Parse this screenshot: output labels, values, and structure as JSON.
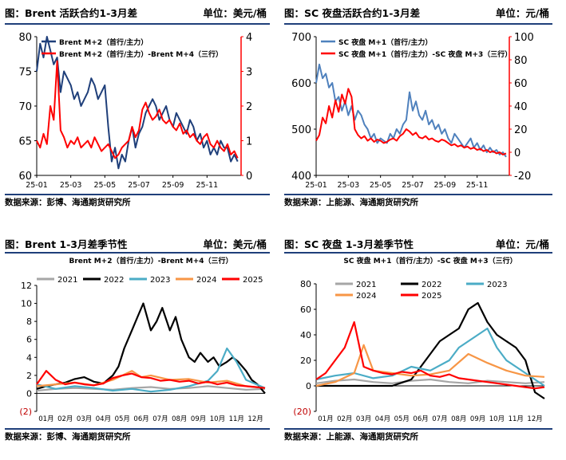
{
  "panels": {
    "p1": {
      "title": "图：Brent 活跃合约1-3月差",
      "unit": "单位：美元/桶",
      "source": "数据来源：彭博、海通期货研究所"
    },
    "p2": {
      "title": "图：SC 夜盘活跃合约1-3月差",
      "unit": "单位：元/桶",
      "source": "数据来源：上能源、海通期货研究所"
    },
    "p3": {
      "title": "图：Brent 1-3月差季节性",
      "unit": "单位：美元/桶",
      "source": "数据来源：彭博、海通期货研究所"
    },
    "p4": {
      "title": "图：SC 夜盘 1-3月差季节性",
      "unit": "单位：元/桶",
      "source": "数据来源：上能源、海通期货研究所"
    }
  },
  "colors": {
    "navy": "#1f3f7a",
    "red": "#ff0000",
    "blue": "#4f81bd",
    "y2021": "#a6a6a6",
    "y2022": "#000000",
    "y2023": "#4bacc6",
    "y2024": "#f79646",
    "y2025": "#ff0000"
  },
  "chart_data": [
    {
      "id": "c1",
      "type": "line",
      "title": "",
      "x_ticks": [
        "25-01",
        "25-03",
        "25-05",
        "25-07",
        "25-09",
        "25-11"
      ],
      "x_range": [
        0,
        12
      ],
      "left_axis": {
        "ticks": [
          "60",
          "65",
          "70",
          "75",
          "80"
        ],
        "range": [
          60,
          80
        ]
      },
      "right_axis": {
        "ticks": [
          "0",
          "1",
          "2",
          "3",
          "4"
        ],
        "range": [
          0,
          4
        ]
      },
      "series": [
        {
          "name": "Brent M+2（首行/主力）",
          "axis": "left",
          "color": "#1f3f7a",
          "x": [
            0,
            0.2,
            0.4,
            0.6,
            0.8,
            1,
            1.2,
            1.4,
            1.6,
            1.8,
            2,
            2.2,
            2.4,
            2.6,
            2.8,
            3,
            3.2,
            3.4,
            3.6,
            3.8,
            4,
            4.2,
            4.4,
            4.6,
            4.8,
            5,
            5.2,
            5.4,
            5.6,
            5.8,
            6,
            6.2,
            6.4,
            6.6,
            6.8,
            7,
            7.2,
            7.4,
            7.6,
            7.8,
            8,
            8.2,
            8.4,
            8.6,
            8.8,
            9,
            9.2,
            9.4,
            9.6,
            9.8,
            10,
            10.2,
            10.4,
            10.6,
            10.8,
            11,
            11.2,
            11.4,
            11.6,
            11.8
          ],
          "y": [
            75,
            79,
            77,
            80,
            78,
            76,
            77,
            72,
            75,
            74,
            73,
            71,
            72,
            70,
            71,
            72,
            74,
            73,
            71,
            72,
            73,
            67,
            62,
            64,
            61,
            63,
            62,
            65,
            67,
            64,
            66,
            67,
            69,
            70,
            71,
            70,
            68,
            69,
            70,
            68,
            67,
            69,
            68,
            67,
            66,
            68,
            67,
            65,
            66,
            64,
            65,
            63,
            64,
            63,
            65,
            64,
            64,
            62,
            63,
            62
          ]
        },
        {
          "name": "Brent M+2（首行/主力）-Brent M+4（三行）",
          "axis": "right",
          "color": "#ff0000",
          "x": [
            0,
            0.2,
            0.4,
            0.6,
            0.8,
            1,
            1.2,
            1.4,
            1.6,
            1.8,
            2,
            2.2,
            2.4,
            2.6,
            2.8,
            3,
            3.2,
            3.4,
            3.6,
            3.8,
            4,
            4.2,
            4.4,
            4.6,
            4.8,
            5,
            5.2,
            5.4,
            5.6,
            5.8,
            6,
            6.2,
            6.4,
            6.6,
            6.8,
            7,
            7.2,
            7.4,
            7.6,
            7.8,
            8,
            8.2,
            8.4,
            8.6,
            8.8,
            9,
            9.2,
            9.4,
            9.6,
            9.8,
            10,
            10.2,
            10.4,
            10.6,
            10.8,
            11,
            11.2,
            11.4,
            11.6,
            11.8
          ],
          "y": [
            1,
            0.8,
            1.2,
            0.9,
            2,
            1.6,
            3.3,
            1.3,
            1.1,
            0.8,
            1,
            0.9,
            1.1,
            0.8,
            0.9,
            1,
            0.8,
            1.1,
            0.9,
            0.7,
            0.8,
            0.9,
            0.7,
            0.5,
            0.6,
            0.8,
            0.9,
            1,
            1.4,
            1.1,
            1.3,
            1.9,
            2.1,
            1.8,
            1.6,
            1.7,
            1.9,
            1.6,
            1.5,
            1.6,
            1.4,
            1.3,
            1.5,
            1.2,
            1.3,
            1.1,
            1.2,
            1,
            0.9,
            1.1,
            1.2,
            0.9,
            0.8,
            1,
            0.8,
            0.7,
            0.9,
            0.6,
            0.7,
            0.5
          ]
        }
      ]
    },
    {
      "id": "c2",
      "type": "line",
      "title": "",
      "x_ticks": [
        "25-01",
        "25-03",
        "25-05",
        "25-07",
        "25-09",
        "25-11"
      ],
      "x_range": [
        0,
        12
      ],
      "left_axis": {
        "ticks": [
          "400",
          "500",
          "600",
          "700"
        ],
        "range": [
          400,
          700
        ]
      },
      "right_axis": {
        "ticks": [
          "-20",
          "0",
          "20",
          "40",
          "60",
          "80",
          "100"
        ],
        "range": [
          -20,
          100
        ]
      },
      "series": [
        {
          "name": "SC 夜盘 M+1（首行/主力）",
          "axis": "left",
          "color": "#4f81bd",
          "x": [
            0,
            0.2,
            0.4,
            0.6,
            0.8,
            1,
            1.2,
            1.4,
            1.6,
            1.8,
            2,
            2.2,
            2.4,
            2.6,
            2.8,
            3,
            3.2,
            3.4,
            3.6,
            3.8,
            4,
            4.2,
            4.4,
            4.6,
            4.8,
            5,
            5.2,
            5.4,
            5.6,
            5.8,
            6,
            6.2,
            6.4,
            6.6,
            6.8,
            7,
            7.2,
            7.4,
            7.6,
            7.8,
            8,
            8.2,
            8.4,
            8.6,
            8.8,
            9,
            9.2,
            9.4,
            9.6,
            9.8,
            10,
            10.2,
            10.4,
            10.6,
            10.8,
            11,
            11.2,
            11.4,
            11.6,
            11.8
          ],
          "y": [
            600,
            640,
            610,
            620,
            590,
            600,
            560,
            570,
            540,
            560,
            530,
            550,
            520,
            540,
            530,
            510,
            500,
            480,
            490,
            470,
            480,
            475,
            470,
            490,
            480,
            500,
            490,
            510,
            520,
            580,
            540,
            560,
            530,
            520,
            540,
            510,
            520,
            500,
            510,
            490,
            500,
            480,
            470,
            490,
            480,
            470,
            460,
            470,
            480,
            460,
            470,
            455,
            465,
            450,
            460,
            450,
            455,
            445,
            450,
            440
          ]
        },
        {
          "name": "SC 夜盘 M+1（首行/主力）-SC 夜盘 M+3（三行）",
          "axis": "right",
          "color": "#ff0000",
          "x": [
            0,
            0.2,
            0.4,
            0.6,
            0.8,
            1,
            1.2,
            1.4,
            1.6,
            1.8,
            2,
            2.2,
            2.4,
            2.6,
            2.8,
            3,
            3.2,
            3.4,
            3.6,
            3.8,
            4,
            4.2,
            4.4,
            4.6,
            4.8,
            5,
            5.2,
            5.4,
            5.6,
            5.8,
            6,
            6.2,
            6.4,
            6.6,
            6.8,
            7,
            7.2,
            7.4,
            7.6,
            7.8,
            8,
            8.2,
            8.4,
            8.6,
            8.8,
            9,
            9.2,
            9.4,
            9.6,
            9.8,
            10,
            10.2,
            10.4,
            10.6,
            10.8,
            11,
            11.2,
            11.4,
            11.6,
            11.8
          ],
          "y": [
            10,
            15,
            30,
            25,
            40,
            30,
            45,
            35,
            50,
            42,
            55,
            48,
            20,
            15,
            12,
            14,
            10,
            12,
            9,
            11,
            10,
            8,
            9,
            11,
            12,
            10,
            14,
            16,
            20,
            18,
            15,
            17,
            13,
            12,
            14,
            11,
            12,
            10,
            9,
            11,
            10,
            8,
            6,
            7,
            5,
            6,
            4,
            5,
            3,
            4,
            2,
            3,
            1,
            2,
            0,
            1,
            -1,
            0,
            -2,
            -1
          ]
        }
      ]
    },
    {
      "id": "c3",
      "type": "line",
      "title": "Brent M+2（首行/主力）-Brent M+4（三行）",
      "x_ticks": [
        "01月",
        "02月",
        "03月",
        "04月",
        "05月",
        "06月",
        "07月",
        "08月",
        "09月",
        "10月",
        "11月",
        "12月"
      ],
      "x_range": [
        0,
        12
      ],
      "y_ticks": [
        "(2)",
        "0",
        "2",
        "4",
        "6",
        "8",
        "10",
        "12"
      ],
      "y_range": [
        -2,
        12
      ],
      "series": [
        {
          "name": "2021",
          "color": "#a6a6a6",
          "x": [
            0,
            1,
            2,
            3,
            4,
            5,
            6,
            7,
            8,
            9,
            10,
            11,
            12
          ],
          "y": [
            0.3,
            0.5,
            0.6,
            0.5,
            0.4,
            0.6,
            0.7,
            0.5,
            0.6,
            0.8,
            0.6,
            0.4,
            0.5
          ]
        },
        {
          "name": "2022",
          "color": "#000000",
          "x": [
            0,
            0.5,
            1,
            1.5,
            2,
            2.5,
            3,
            3.5,
            4,
            4.3,
            4.6,
            5,
            5.3,
            5.6,
            6,
            6.3,
            6.6,
            7,
            7.3,
            7.6,
            8,
            8.3,
            8.6,
            9,
            9.3,
            9.6,
            10,
            10.3,
            10.6,
            11,
            11.3,
            11.6,
            12
          ],
          "y": [
            0.5,
            0.8,
            1,
            1.2,
            1.6,
            1.8,
            1.3,
            1.1,
            2,
            3,
            5,
            7,
            8.5,
            10,
            7,
            8,
            9.5,
            7,
            8.5,
            6,
            4,
            3.5,
            4.5,
            3.5,
            4,
            3,
            3.5,
            4,
            3.5,
            2.5,
            1.5,
            1,
            0
          ]
        },
        {
          "name": "2023",
          "color": "#4bacc6",
          "x": [
            0,
            1,
            2,
            3,
            4,
            5,
            6,
            7,
            8,
            9,
            9.5,
            10,
            10.5,
            11,
            12
          ],
          "y": [
            1,
            0.5,
            0.8,
            0.6,
            0.3,
            0.5,
            0.2,
            0.4,
            0.8,
            1.4,
            2.5,
            5,
            3.5,
            1.5,
            0.6
          ]
        },
        {
          "name": "2024",
          "color": "#f79646",
          "x": [
            0,
            1,
            2,
            3,
            4,
            4.5,
            5,
            5.5,
            6,
            7,
            8,
            9,
            10,
            11,
            12
          ],
          "y": [
            0.8,
            1,
            1.2,
            0.9,
            1.5,
            2,
            2.5,
            1.8,
            2,
            1.5,
            1.6,
            1.2,
            1.4,
            0.8,
            0.6
          ]
        },
        {
          "name": "2025",
          "color": "#ff0000",
          "x": [
            0,
            0.5,
            1,
            1.5,
            2,
            2.5,
            3,
            3.5,
            4,
            4.5,
            5,
            5.5,
            6,
            6.5,
            7,
            7.5,
            8,
            8.5,
            9,
            9.5,
            10,
            10.5,
            11,
            11.5,
            12
          ],
          "y": [
            1,
            2.5,
            1.5,
            1,
            1.2,
            1,
            0.9,
            1.1,
            1.7,
            2,
            2.2,
            1.8,
            1.7,
            1.4,
            1.5,
            1.3,
            1.4,
            1.1,
            1.3,
            1,
            1.2,
            0.9,
            0.8,
            0.7,
            0.6
          ]
        }
      ]
    },
    {
      "id": "c4",
      "type": "line",
      "title": "SC 夜盘 M+1（首行/主力）-SC 夜盘 M+3（三行）",
      "x_ticks": [
        "01月",
        "02月",
        "03月",
        "04月",
        "05月",
        "06月",
        "07月",
        "08月",
        "09月",
        "10月",
        "11月",
        "12月"
      ],
      "x_range": [
        0,
        12
      ],
      "y_ticks": [
        "(20)",
        "0",
        "20",
        "40",
        "60",
        "80"
      ],
      "y_range": [
        -20,
        80
      ],
      "series": [
        {
          "name": "2021",
          "color": "#a6a6a6",
          "x": [
            0,
            1,
            2,
            3,
            4,
            5,
            6,
            7,
            8,
            9,
            10,
            11,
            12
          ],
          "y": [
            2,
            4,
            5,
            3,
            2,
            4,
            5,
            3,
            2,
            4,
            3,
            2,
            3
          ]
        },
        {
          "name": "2022",
          "color": "#000000",
          "x": [
            0,
            1,
            2,
            3,
            4,
            5,
            5.5,
            6,
            6.5,
            7,
            7.5,
            8,
            8.5,
            9,
            9.5,
            10,
            10.5,
            11,
            11.5,
            12
          ],
          "y": [
            0,
            0,
            0,
            0,
            0,
            5,
            15,
            25,
            35,
            40,
            45,
            60,
            65,
            50,
            40,
            35,
            30,
            20,
            -5,
            -10
          ]
        },
        {
          "name": "2023",
          "color": "#4bacc6",
          "x": [
            0,
            1,
            2,
            3,
            4,
            5,
            6,
            7,
            7.5,
            8,
            8.5,
            9,
            9.5,
            10,
            10.5,
            11,
            11.5,
            12
          ],
          "y": [
            5,
            8,
            10,
            6,
            8,
            15,
            12,
            20,
            30,
            35,
            40,
            45,
            30,
            20,
            15,
            10,
            5,
            0
          ]
        },
        {
          "name": "2024",
          "color": "#f79646",
          "x": [
            0,
            1,
            2,
            2.5,
            3,
            4,
            5,
            6,
            7,
            8,
            9,
            10,
            11,
            12
          ],
          "y": [
            0,
            3,
            10,
            32,
            12,
            10,
            8,
            9,
            12,
            25,
            18,
            12,
            8,
            7
          ]
        },
        {
          "name": "2025",
          "color": "#ff0000",
          "x": [
            0,
            0.5,
            1,
            1.5,
            2,
            2.5,
            3,
            3.5,
            4,
            4.5,
            5,
            5.5,
            6,
            6.5,
            7,
            7.5,
            8,
            8.5,
            9,
            9.5,
            10,
            10.5,
            11,
            11.5,
            12
          ],
          "y": [
            5,
            10,
            20,
            30,
            50,
            15,
            12,
            10,
            9,
            11,
            10,
            12,
            8,
            7,
            9,
            6,
            5,
            4,
            3,
            2,
            1,
            0,
            -1,
            -2,
            -1
          ]
        }
      ]
    }
  ]
}
